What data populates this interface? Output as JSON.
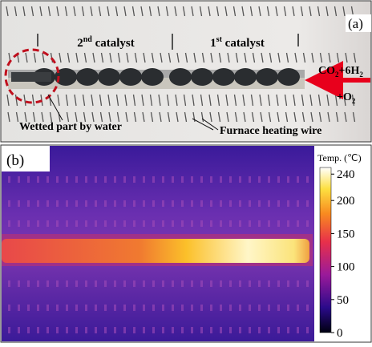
{
  "panel_a": {
    "label": "(a)",
    "second_catalyst": [
      "2",
      "nd",
      " catalyst"
    ],
    "first_catalyst": [
      "1",
      "st",
      " catalyst"
    ],
    "feed_gas": [
      "CO",
      "2",
      "+6H",
      "2"
    ],
    "oxygen": [
      "+O",
      "2"
    ],
    "wetted_label": "Wetted part by water",
    "wire_label": "Furnace heating wire"
  },
  "panel_b": {
    "label": "(b)",
    "colorbar": {
      "title": "Temp. (℃)",
      "lim": [
        0,
        250
      ],
      "ticks": [
        0,
        50,
        100,
        150,
        200,
        240
      ]
    }
  }
}
